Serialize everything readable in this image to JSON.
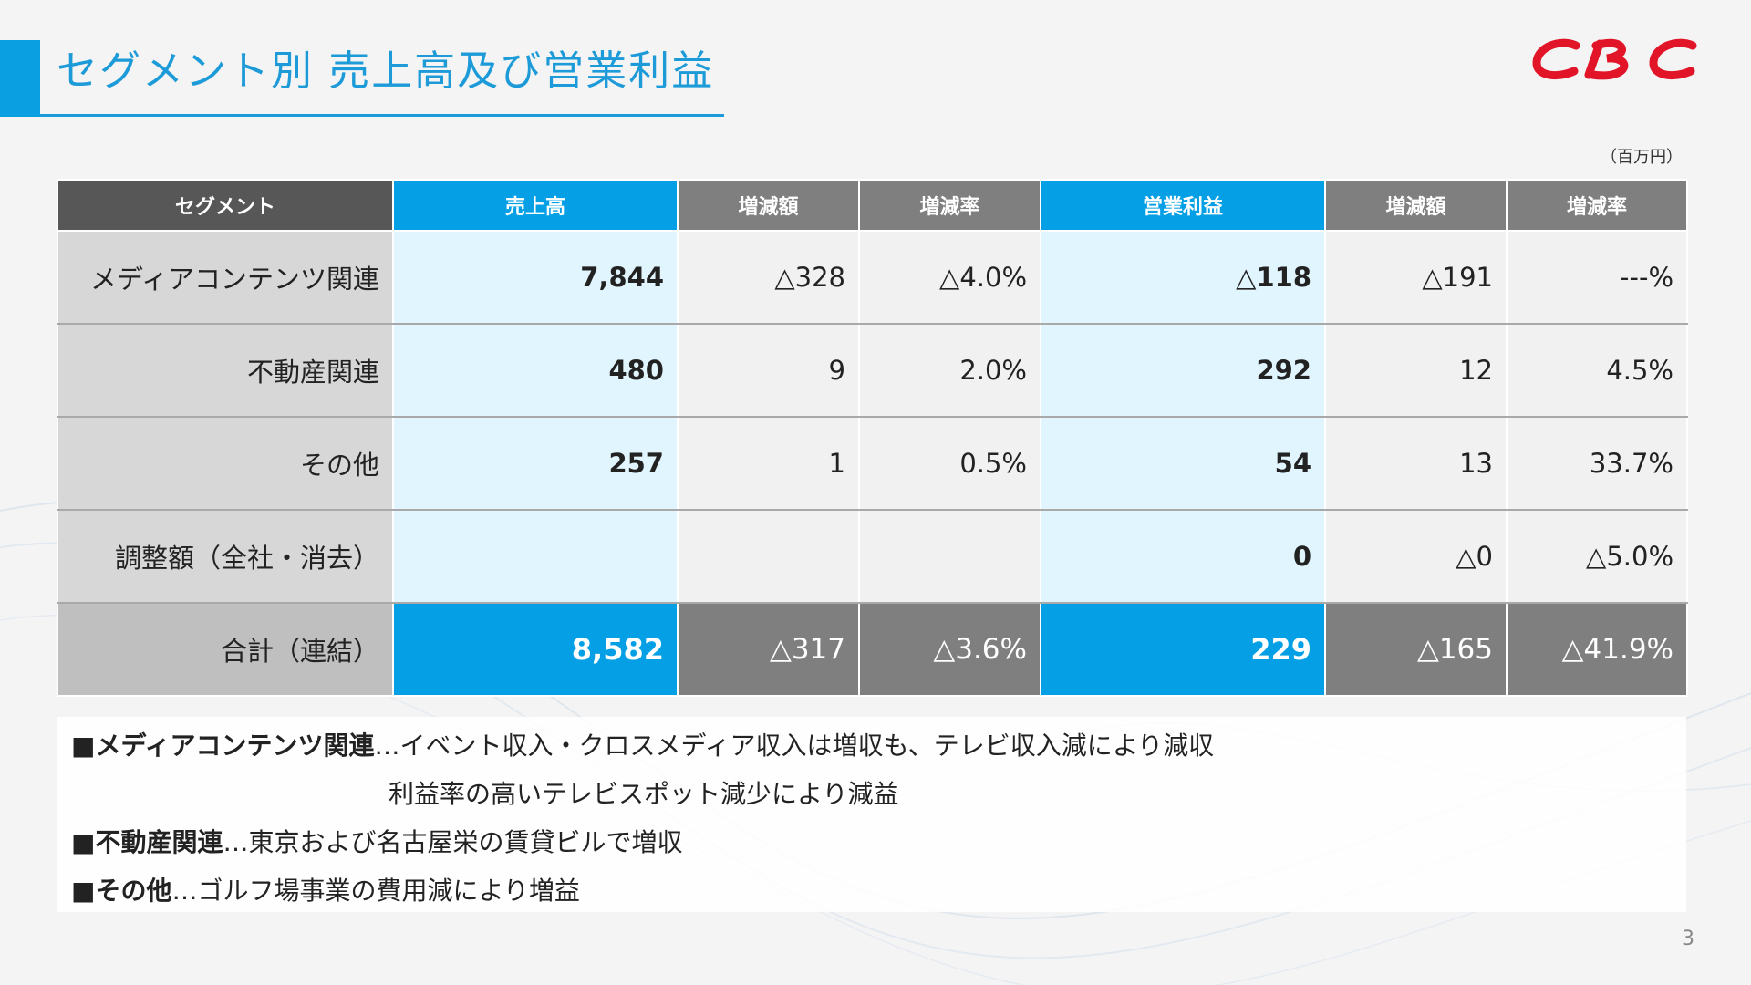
{
  "slide": {
    "title": "セグメント別 売上高及び営業利益",
    "unit": "（百万円）",
    "page_number": "3"
  },
  "logo": {
    "alt": "CBC",
    "color": "#e11428"
  },
  "colors": {
    "accent_blue": "#049fe4",
    "header_dark": "#575757",
    "header_gray": "#7f7f7f"
  },
  "table": {
    "headers": [
      "セグメント",
      "売上高",
      "増減額",
      "増減率",
      "営業利益",
      "増減額",
      "増減率"
    ],
    "rows": [
      {
        "segment": "メディアコンテンツ関連",
        "sales": "7,844",
        "sales_change": "△328",
        "sales_rate": "△4.0%",
        "profit": "△118",
        "profit_change": "△191",
        "profit_rate": "---%"
      },
      {
        "segment": "不動産関連",
        "sales": "480",
        "sales_change": "9",
        "sales_rate": "2.0%",
        "profit": "292",
        "profit_change": "12",
        "profit_rate": "4.5%"
      },
      {
        "segment": "その他",
        "sales": "257",
        "sales_change": "1",
        "sales_rate": "0.5%",
        "profit": "54",
        "profit_change": "13",
        "profit_rate": "33.7%"
      },
      {
        "segment": "調整額（全社・消去）",
        "sales": "",
        "sales_change": "",
        "sales_rate": "",
        "profit": "0",
        "profit_change": "△0",
        "profit_rate": "△5.0%"
      }
    ],
    "total": {
      "segment": "合計（連結）",
      "sales": "8,582",
      "sales_change": "△317",
      "sales_rate": "△3.6%",
      "profit": "229",
      "profit_change": "△165",
      "profit_rate": "△41.9%"
    }
  },
  "notes": [
    {
      "heading": "■メディアコンテンツ関連",
      "text": "…イベント収入・クロスメディア収入は増収も、テレビ収入減により減収"
    },
    {
      "heading": "",
      "text": "利益率の高いテレビスポット減少により減益"
    },
    {
      "heading": "■不動産関連",
      "text": "…東京および名古屋栄の賃貸ビルで増収"
    },
    {
      "heading": "■その他",
      "text": "…ゴルフ場事業の費用減により増益"
    }
  ]
}
